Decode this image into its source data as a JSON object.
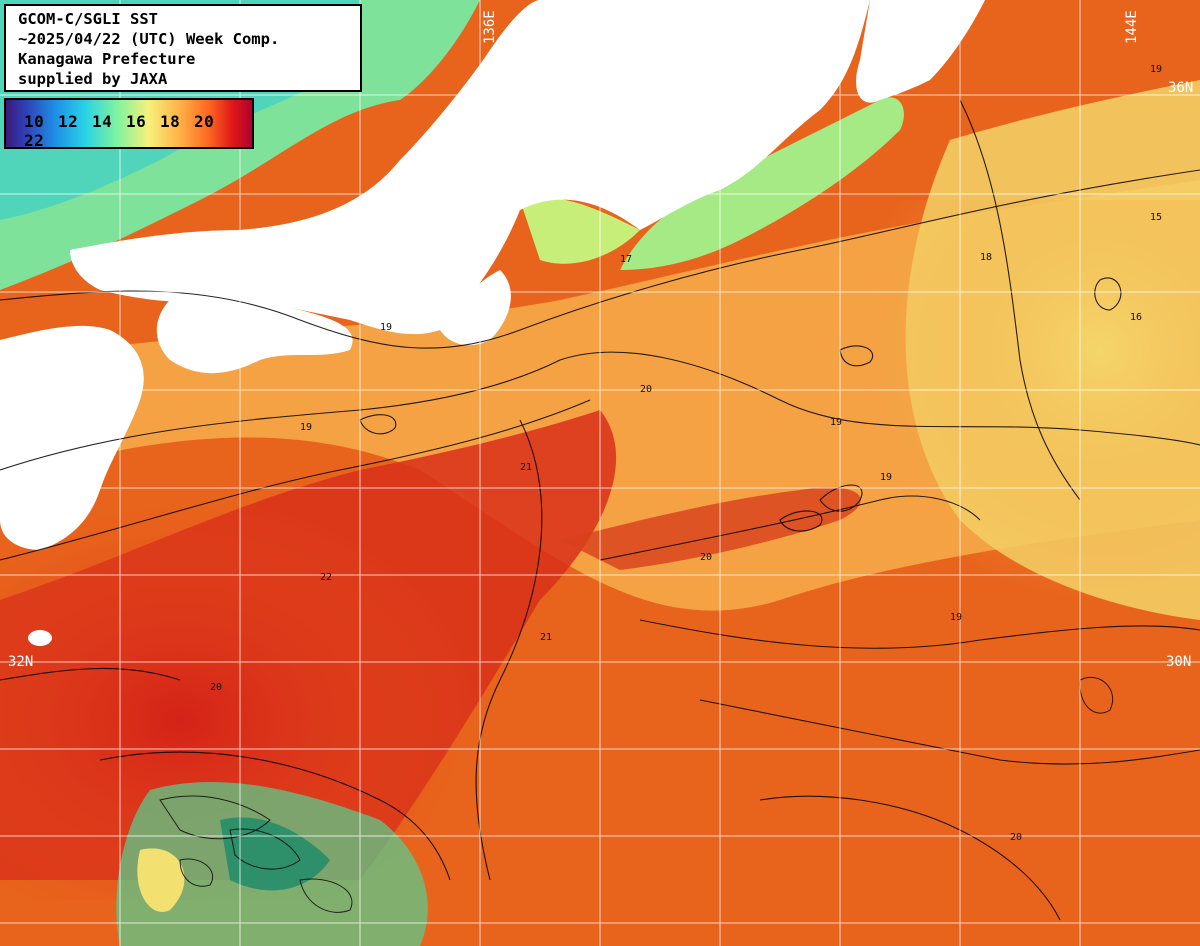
{
  "map": {
    "header_lines": [
      "GCOM-C/SGLI SST",
      "~2025/04/22 (UTC) Week Comp.",
      "Kanagawa Prefecture",
      "supplied by JAXA"
    ],
    "scale_labels": [
      "10",
      "12",
      "14",
      "16",
      "18",
      "20",
      "22"
    ],
    "grid_labels": {
      "lon_top": "144E",
      "lat_right_upper": "36N",
      "lat_right_lower": "30N",
      "lat_left": "32N",
      "lon_top_left": "136E"
    },
    "contour_labels": [
      "19",
      "20",
      "21",
      "18",
      "17",
      "15",
      "16",
      "22"
    ],
    "colors": {
      "land": "#ffffff",
      "ocean_warm": "#e8641c",
      "ocean_hot": "#d8281a",
      "ocean_mild": "#f6a040",
      "ocean_cool": "#f2e070",
      "coastal_cool": "#7ee29a",
      "grid": "#ffffff"
    }
  }
}
